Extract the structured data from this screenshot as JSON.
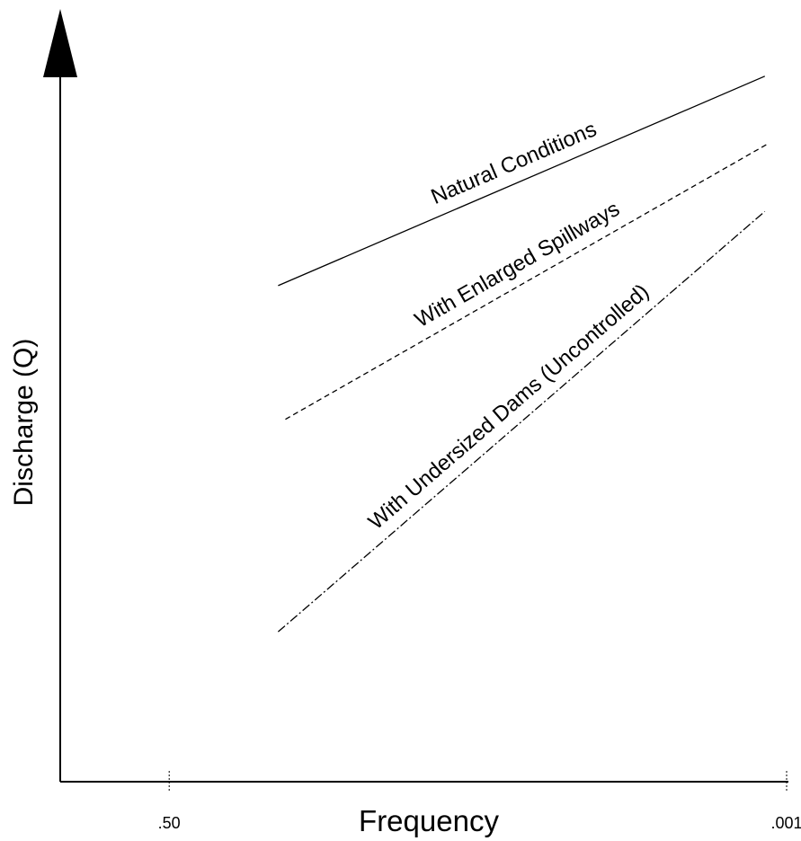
{
  "chart_data": {
    "type": "line",
    "xlabel": "Frequency",
    "ylabel": "Discharge (Q)",
    "xlim": [
      0,
      100
    ],
    "xticks": [
      {
        "value": 15,
        "label": ".50"
      },
      {
        "value": 100,
        "label": ".001"
      }
    ],
    "ylim": [
      0,
      100
    ],
    "series": [
      {
        "name": "Natural Conditions",
        "color": "#000000",
        "style": "solid",
        "x": [
          30,
          97
        ],
        "values": [
          64.2,
          91.3
        ]
      },
      {
        "name": "With Enlarged Spillways",
        "color": "#000000",
        "style": "dashed",
        "x": [
          31,
          97.5
        ],
        "values": [
          46.9,
          82.6
        ]
      },
      {
        "name": "With Undersized Dams (Uncontrolled)",
        "color": "#000000",
        "style": "dashdot",
        "x": [
          30,
          97
        ],
        "values": [
          19.4,
          73.8
        ]
      }
    ]
  }
}
